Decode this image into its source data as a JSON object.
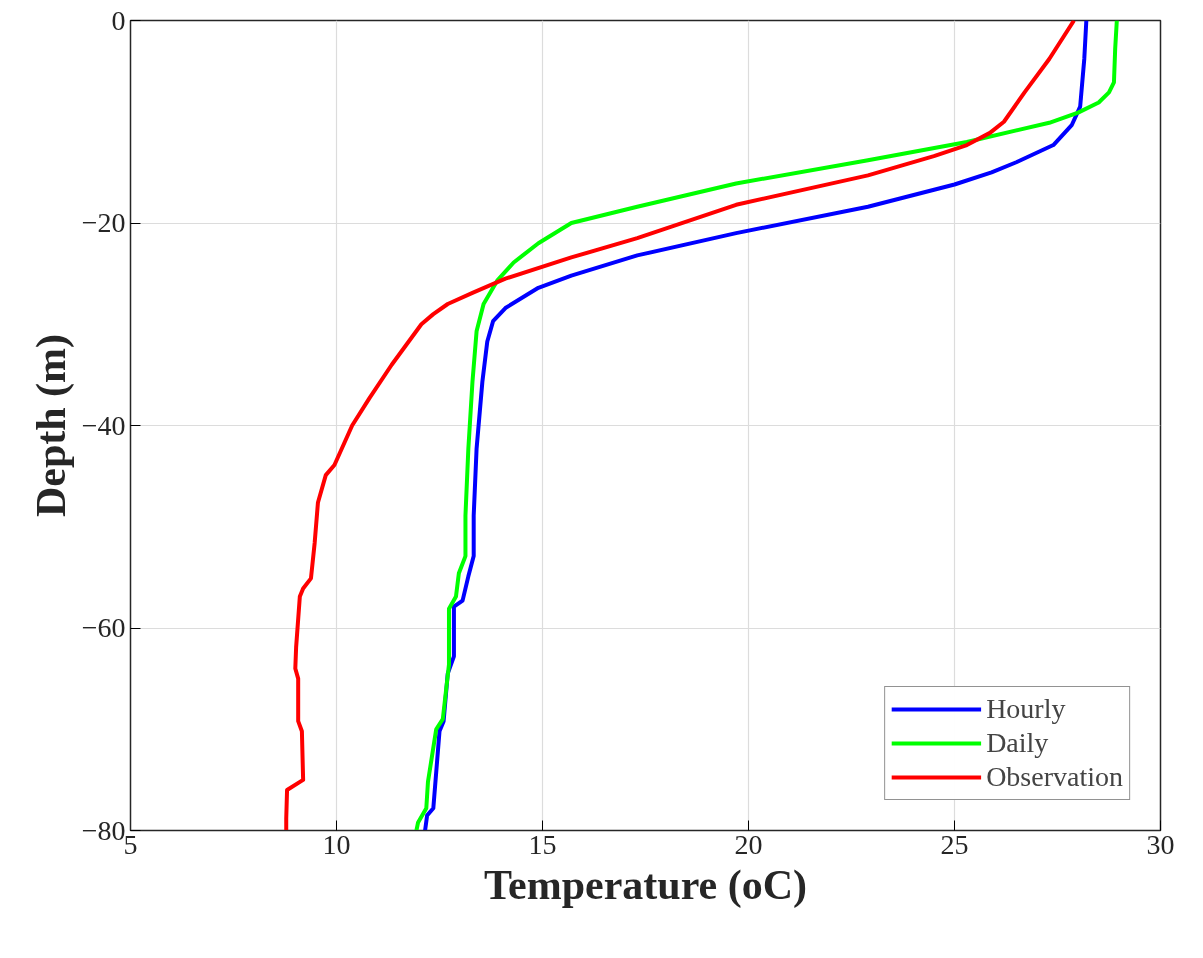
{
  "chart_data": {
    "type": "line",
    "xlabel": "Temperature (oC)",
    "ylabel": "Depth (m)",
    "xlim": [
      5,
      30
    ],
    "ylim": [
      -80,
      0
    ],
    "xticks": [
      5,
      10,
      15,
      20,
      25,
      30
    ],
    "yticks": [
      -80,
      -60,
      -40,
      -20,
      0
    ],
    "grid": true,
    "legend": "bottom right",
    "line_style": "solid",
    "marker": "none",
    "series": [
      {
        "name": "Hourly",
        "color": "#0000ff",
        "x": [
          28.2,
          28.15,
          28.05,
          27.85,
          27.4,
          26.5,
          25.9,
          25.0,
          22.9,
          19.7,
          17.3,
          15.7,
          14.9,
          14.1,
          13.8,
          13.66,
          13.54,
          13.4,
          13.33,
          13.33,
          13.2,
          13.06,
          12.85,
          12.85,
          12.7,
          12.6,
          12.5,
          12.35,
          12.2,
          12.15
        ],
        "values": [
          0,
          -3.8,
          -8.5,
          -10.3,
          -12.3,
          -14,
          -15,
          -16.2,
          -18.4,
          -21,
          -23.2,
          -25.2,
          -26.4,
          -28.4,
          -29.7,
          -31.7,
          -35.7,
          -42.3,
          -48.9,
          -52.9,
          -54.9,
          -57.3,
          -57.9,
          -62.8,
          -64.5,
          -69.2,
          -70.2,
          -77.8,
          -78.5,
          -80
        ]
      },
      {
        "name": "Daily",
        "color": "#00ff00",
        "x": [
          28.94,
          28.9,
          28.87,
          28.75,
          28.5,
          28.0,
          27.3,
          25.3,
          22.9,
          19.7,
          17.3,
          15.7,
          14.9,
          14.3,
          13.9,
          13.57,
          13.4,
          13.3,
          13.2,
          13.13,
          13.13,
          12.97,
          12.9,
          12.73,
          12.73,
          12.58,
          12.42,
          12.22,
          12.18,
          11.98,
          11.94
        ],
        "values": [
          0,
          -2.8,
          -6.1,
          -7.1,
          -8.1,
          -9.1,
          -10.1,
          -12,
          -13.8,
          -16.1,
          -18.4,
          -20,
          -22,
          -23.9,
          -25.7,
          -28,
          -30.7,
          -35.7,
          -42.3,
          -48.9,
          -52.9,
          -54.6,
          -56.9,
          -58.1,
          -63.6,
          -69,
          -70,
          -75.2,
          -77.8,
          -79.2,
          -80
        ]
      },
      {
        "name": "Observation",
        "color": "#ff0000",
        "x": [
          27.9,
          27.3,
          26.7,
          26.2,
          25.86,
          25.3,
          24.5,
          22.9,
          19.7,
          17.3,
          15.7,
          14.1,
          13.3,
          12.7,
          12.35,
          12.06,
          11.34,
          10.8,
          10.38,
          9.95,
          9.74,
          9.55,
          9.47,
          9.38,
          9.19,
          9.11,
          9.02,
          9.0,
          9.07,
          9.07,
          9.16,
          9.19,
          8.8,
          8.78,
          8.78
        ],
        "values": [
          0,
          -3.8,
          -7.1,
          -10,
          -11.1,
          -12.3,
          -13.4,
          -15.3,
          -18.2,
          -21.5,
          -23.4,
          -25.5,
          -26.9,
          -28,
          -29,
          -30,
          -34,
          -37.3,
          -40,
          -43.9,
          -44.9,
          -47.6,
          -51.6,
          -55.1,
          -56.1,
          -56.9,
          -61.9,
          -64,
          -65,
          -69.2,
          -70.2,
          -75,
          -76,
          -78.8,
          -80
        ]
      }
    ]
  }
}
